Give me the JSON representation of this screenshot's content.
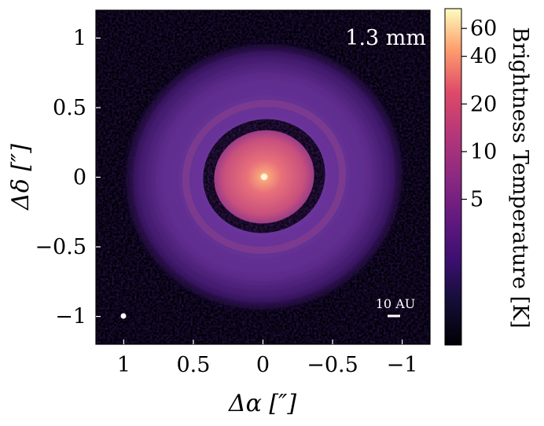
{
  "figure": {
    "band_label": "1.3 mm",
    "scale_bar_label": "10 AU",
    "x_axis": {
      "label": "Δα [″]",
      "range": [
        1.2,
        -1.2
      ],
      "ticks": [
        {
          "value": 1,
          "label": "1"
        },
        {
          "value": 0.5,
          "label": "0.5"
        },
        {
          "value": 0,
          "label": "0"
        },
        {
          "value": -0.5,
          "label": "−0.5"
        },
        {
          "value": -1,
          "label": "−1"
        }
      ]
    },
    "y_axis": {
      "label": "Δδ [″]",
      "range": [
        -1.2,
        1.2
      ],
      "ticks": [
        {
          "value": 1,
          "label": "1"
        },
        {
          "value": 0.5,
          "label": "0.5"
        },
        {
          "value": 0,
          "label": "0"
        },
        {
          "value": -0.5,
          "label": "−0.5"
        },
        {
          "value": -1,
          "label": "−1"
        }
      ]
    },
    "colorbar": {
      "label": "Brightness Temperature [K]",
      "scale": "log",
      "colormap": "magma",
      "range": [
        0.6,
        80
      ],
      "ticks": [
        {
          "value": 60,
          "label": "60"
        },
        {
          "value": 40,
          "label": "40"
        },
        {
          "value": 20,
          "label": "20"
        },
        {
          "value": 10,
          "label": "10"
        },
        {
          "value": 5,
          "label": "5"
        }
      ]
    },
    "colors": {
      "background": "#000004",
      "outer_disk": "#6a3399",
      "ring": "#7e3a8c",
      "inner_disk": "#e0606c",
      "peak": "#fde8c0"
    }
  }
}
